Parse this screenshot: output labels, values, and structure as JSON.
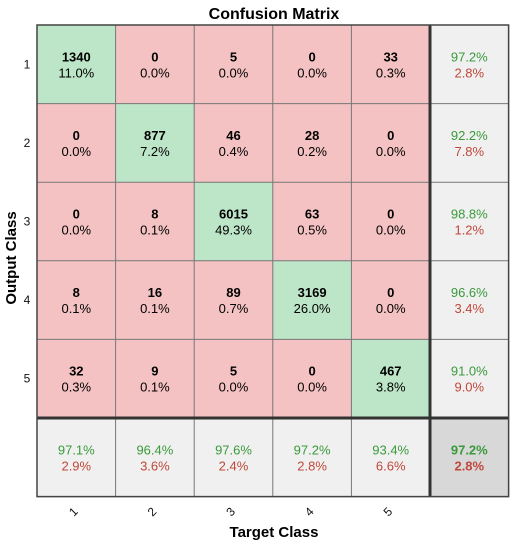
{
  "chart_data": {
    "type": "heatmap",
    "title": "Confusion Matrix",
    "xlabel": "Target Class",
    "ylabel": "Output Class",
    "classes": [
      "1",
      "2",
      "3",
      "4",
      "5"
    ],
    "rows": [
      {
        "cells": [
          {
            "count": "1340",
            "pct": "11.0%"
          },
          {
            "count": "0",
            "pct": "0.0%"
          },
          {
            "count": "5",
            "pct": "0.0%"
          },
          {
            "count": "0",
            "pct": "0.0%"
          },
          {
            "count": "33",
            "pct": "0.3%"
          }
        ],
        "summary": {
          "correct": "97.2%",
          "wrong": "2.8%"
        }
      },
      {
        "cells": [
          {
            "count": "0",
            "pct": "0.0%"
          },
          {
            "count": "877",
            "pct": "7.2%"
          },
          {
            "count": "46",
            "pct": "0.4%"
          },
          {
            "count": "28",
            "pct": "0.2%"
          },
          {
            "count": "0",
            "pct": "0.0%"
          }
        ],
        "summary": {
          "correct": "92.2%",
          "wrong": "7.8%"
        }
      },
      {
        "cells": [
          {
            "count": "0",
            "pct": "0.0%"
          },
          {
            "count": "8",
            "pct": "0.1%"
          },
          {
            "count": "6015",
            "pct": "49.3%"
          },
          {
            "count": "63",
            "pct": "0.5%"
          },
          {
            "count": "0",
            "pct": "0.0%"
          }
        ],
        "summary": {
          "correct": "98.8%",
          "wrong": "1.2%"
        }
      },
      {
        "cells": [
          {
            "count": "8",
            "pct": "0.1%"
          },
          {
            "count": "16",
            "pct": "0.1%"
          },
          {
            "count": "89",
            "pct": "0.7%"
          },
          {
            "count": "3169",
            "pct": "26.0%"
          },
          {
            "count": "0",
            "pct": "0.0%"
          }
        ],
        "summary": {
          "correct": "96.6%",
          "wrong": "3.4%"
        }
      },
      {
        "cells": [
          {
            "count": "32",
            "pct": "0.3%"
          },
          {
            "count": "9",
            "pct": "0.1%"
          },
          {
            "count": "5",
            "pct": "0.0%"
          },
          {
            "count": "0",
            "pct": "0.0%"
          },
          {
            "count": "467",
            "pct": "3.8%"
          }
        ],
        "summary": {
          "correct": "91.0%",
          "wrong": "9.0%"
        }
      }
    ],
    "column_summary": [
      {
        "correct": "97.1%",
        "wrong": "2.9%"
      },
      {
        "correct": "96.4%",
        "wrong": "3.6%"
      },
      {
        "correct": "97.6%",
        "wrong": "2.4%"
      },
      {
        "correct": "97.2%",
        "wrong": "2.8%"
      },
      {
        "correct": "93.4%",
        "wrong": "6.6%"
      }
    ],
    "overall": {
      "correct": "97.2%",
      "wrong": "2.8%"
    }
  },
  "colors": {
    "diagonal": "#bde5c8",
    "off_diagonal": "#f4c2c2",
    "summary": "#f0f0f0",
    "overall": "#d8d8d8",
    "correct_text": "#3a9a3a",
    "wrong_text": "#c0483a"
  }
}
